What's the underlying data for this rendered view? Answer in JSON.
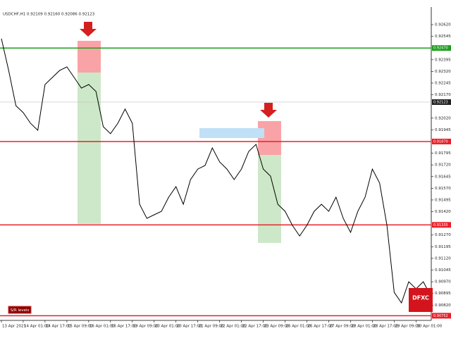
{
  "chart_data": {
    "type": "line",
    "title": "USDCHF,H1 0.92109 0.92160 0.92086 0.92123",
    "color": "#000000",
    "categories": [
      "13 Apr 2021",
      null,
      null,
      "14 Apr 01:00",
      null,
      null,
      "14 Apr 17:00",
      null,
      null,
      "15 Apr 09:00",
      null,
      null,
      "16 Apr 01:00",
      null,
      null,
      "16 Apr 17:00",
      null,
      null,
      "19 Apr 09:00",
      null,
      null,
      "20 Apr 01:00",
      null,
      null,
      "20 Apr 17:00",
      null,
      null,
      "21 Apr 09:00",
      null,
      null,
      "22 Apr 01:00",
      null,
      null,
      "22 Apr 17:00",
      null,
      null,
      "23 Apr 09:00",
      null,
      null,
      "26 Apr 01:00",
      null,
      null,
      "26 Apr 17:00",
      null,
      null,
      "27 Apr 09:00",
      null,
      null,
      "28 Apr 01:00",
      null,
      null,
      "28 Apr 17:00",
      null,
      null,
      "29 Apr 09:00",
      null,
      null,
      "30 Apr 01:00",
      null,
      null
    ],
    "values": [
      0.9253,
      0.92326,
      0.921,
      0.92055,
      0.91987,
      0.91942,
      0.92236,
      0.92281,
      0.92326,
      0.92349,
      0.92281,
      0.92213,
      0.92236,
      0.92191,
      0.91965,
      0.9192,
      0.91987,
      0.92078,
      0.91987,
      0.91467,
      0.91377,
      0.914,
      0.91422,
      0.91513,
      0.9158,
      0.91467,
      0.91626,
      0.91693,
      0.91716,
      0.91829,
      0.91739,
      0.91693,
      0.91626,
      0.91693,
      0.91806,
      0.91852,
      0.91693,
      0.91648,
      0.91467,
      0.91422,
      0.91332,
      0.91264,
      0.91332,
      0.91422,
      0.91467,
      0.91422,
      0.91513,
      0.91377,
      0.91287,
      0.91422,
      0.91513,
      0.91693,
      0.91603,
      0.91332,
      0.90902,
      0.90834,
      0.9097,
      0.90925,
      0.9097,
      0.9088
    ],
    "ylim": [
      0.90722,
      0.92733
    ],
    "yticks": [
      {
        "value": 0.9262,
        "label": "0.92620"
      },
      {
        "value": 0.92545,
        "label": "0.92545"
      },
      {
        "value": 0.92395,
        "label": "0.92395"
      },
      {
        "value": 0.9232,
        "label": "0.92320"
      },
      {
        "value": 0.92245,
        "label": "0.92245"
      },
      {
        "value": 0.9217,
        "label": "0.92170"
      },
      {
        "value": 0.9202,
        "label": "0.92020"
      },
      {
        "value": 0.91945,
        "label": "0.91945"
      },
      {
        "value": 0.91795,
        "label": "0.91795"
      },
      {
        "value": 0.9172,
        "label": "0.91720"
      },
      {
        "value": 0.91645,
        "label": "0.91645"
      },
      {
        "value": 0.9157,
        "label": "0.91570"
      },
      {
        "value": 0.91495,
        "label": "0.91495"
      },
      {
        "value": 0.9142,
        "label": "0.91420"
      },
      {
        "value": 0.9127,
        "label": "0.91270"
      },
      {
        "value": 0.91195,
        "label": "0.91195"
      },
      {
        "value": 0.9112,
        "label": "0.91120"
      },
      {
        "value": 0.91045,
        "label": "0.91045"
      },
      {
        "value": 0.9097,
        "label": "0.90970"
      },
      {
        "value": 0.90895,
        "label": "0.90895"
      },
      {
        "value": 0.9082,
        "label": "0.90820"
      }
    ],
    "levels": [
      {
        "value": 0.9247,
        "label": "0.92470",
        "color": "#1e9e1e"
      },
      {
        "value": 0.9187,
        "label": "0.91870",
        "color": "#e8202a"
      },
      {
        "value": 0.91335,
        "label": "0.91335",
        "color": "#e8202a"
      },
      {
        "value": 0.90752,
        "label": "0.90752",
        "color": "#e8202a"
      }
    ],
    "current": {
      "value": 0.92123,
      "label": "0.92123",
      "color": "#c0c0c0"
    },
    "button": "S/R levels",
    "logo": "DFXC"
  }
}
